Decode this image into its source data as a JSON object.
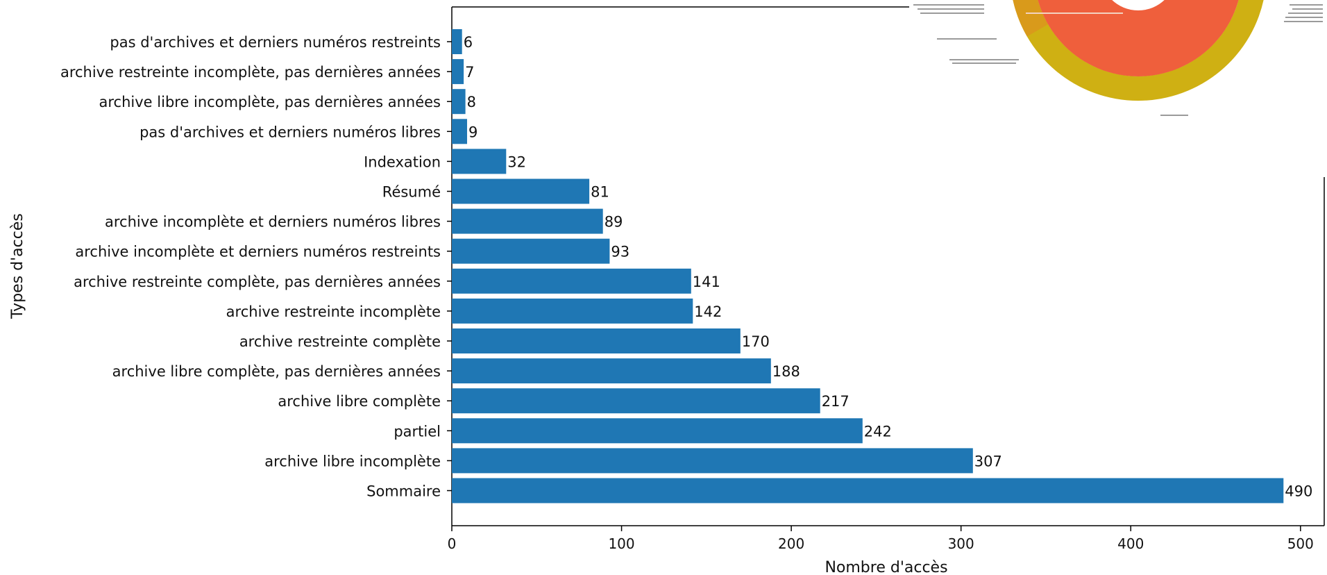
{
  "chart_data": {
    "type": "bar",
    "orientation": "horizontal",
    "categories": [
      "pas d'archives et derniers numéros restreints",
      "archive restreinte incomplète, pas dernières années",
      "archive libre incomplète, pas dernières années",
      "pas d'archives et derniers numéros libres",
      "Indexation",
      "Résumé",
      "archive incomplète et derniers numéros libres",
      "archive incomplète et derniers numéros restreints",
      "archive restreinte complète, pas dernières années",
      "archive restreinte incomplète",
      "archive restreinte complète",
      "archive libre complète, pas dernières années",
      "archive libre complète",
      "partiel",
      "archive libre incomplète",
      "Sommaire"
    ],
    "values": [
      6,
      7,
      8,
      9,
      32,
      81,
      89,
      93,
      141,
      142,
      170,
      188,
      217,
      242,
      307,
      490
    ],
    "value_labels": [
      "6",
      "7",
      "8",
      "9",
      "32",
      "81",
      "89",
      "93",
      "141",
      "142",
      "170",
      "188",
      "217",
      "242",
      "307",
      "490"
    ],
    "xlabel": "Nombre d'accès",
    "ylabel": "Types d'accès",
    "xlim": [
      0,
      510
    ],
    "xticks": [
      0,
      100,
      200,
      300,
      400,
      500
    ],
    "xtick_labels": [
      "0",
      "100",
      "200",
      "300",
      "400",
      "500"
    ],
    "grid": false,
    "bar_color": "#1f77b4",
    "inset": {
      "type": "sunburst",
      "colors": [
        "#ef5f3c",
        "#cfb013",
        "#d99a1b",
        "#4fd3e0"
      ]
    }
  }
}
